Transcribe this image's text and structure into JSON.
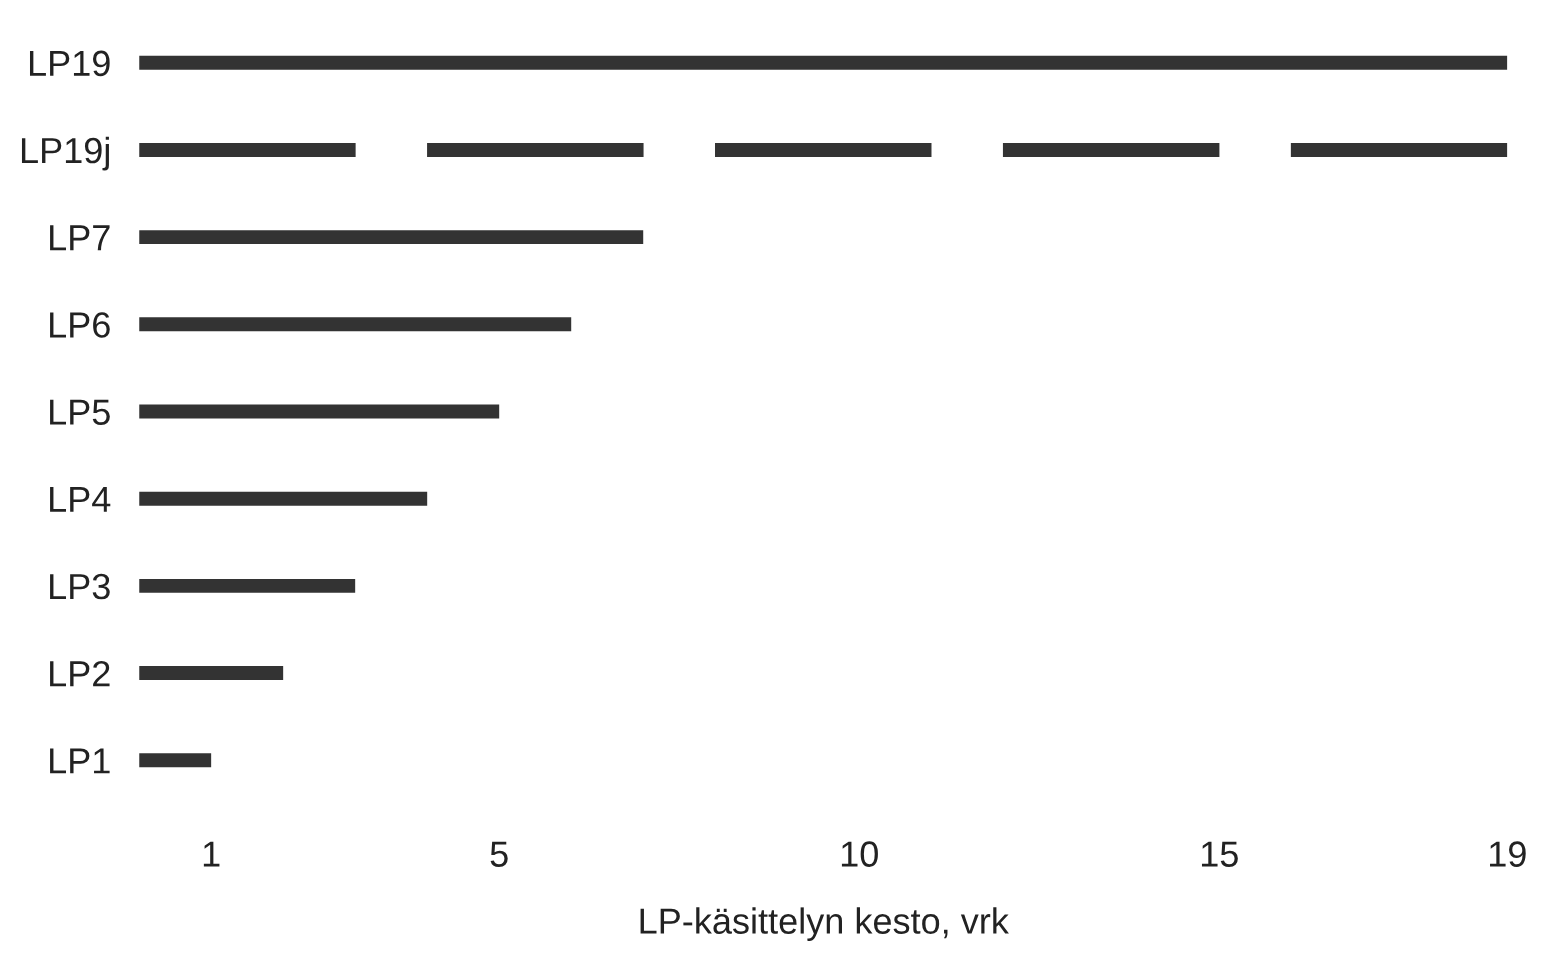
{
  "chart_data": {
    "type": "bar",
    "orientation": "horizontal",
    "xlabel": "LP-käsittelyn kesto, vrk",
    "categories": [
      "LP19",
      "LP19j",
      "LP7",
      "LP6",
      "LP5",
      "LP4",
      "LP3",
      "LP2",
      "LP1"
    ],
    "series": [
      {
        "color": "#333333",
        "values": [
          19,
          null,
          7,
          6,
          5,
          4,
          3,
          2,
          1
        ]
      },
      {
        "color": "#333333",
        "line_style": "dashed",
        "values": [
          null,
          19,
          null,
          null,
          null,
          null,
          null,
          null,
          null
        ]
      }
    ],
    "xlim": [
      0,
      19
    ],
    "xticks": [
      1,
      5,
      10,
      15,
      19
    ],
    "grid": false,
    "legend": false
  }
}
